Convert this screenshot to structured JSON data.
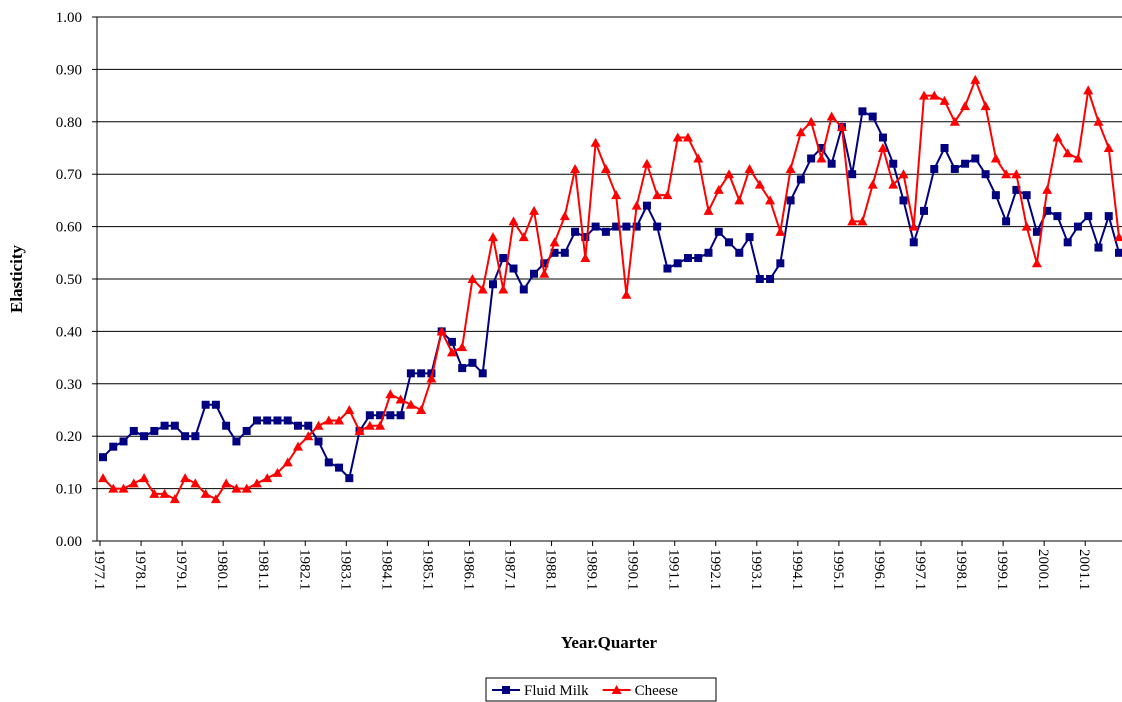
{
  "chart_data": {
    "type": "line",
    "x_label": "Year.Quarter",
    "y_label": "Elasticity",
    "categories": [
      "1977.1",
      null,
      null,
      null,
      "1978.1",
      null,
      null,
      null,
      "1979.1",
      null,
      null,
      null,
      "1980.1",
      null,
      null,
      null,
      "1981.1",
      null,
      null,
      null,
      "1982.1",
      null,
      null,
      null,
      "1983.1",
      null,
      null,
      null,
      "1984.1",
      null,
      null,
      null,
      "1985.1",
      null,
      null,
      null,
      "1986.1",
      null,
      null,
      null,
      "1987.1",
      null,
      null,
      null,
      "1988.1",
      null,
      null,
      null,
      "1989.1",
      null,
      null,
      null,
      "1990.1",
      null,
      null,
      null,
      "1991.1",
      null,
      null,
      null,
      "1992.1",
      null,
      null,
      null,
      "1993.1",
      null,
      null,
      null,
      "1994.1",
      null,
      null,
      null,
      "1995.1",
      null,
      null,
      null,
      "1996.1",
      null,
      null,
      null,
      "1997.1",
      null,
      null,
      null,
      "1998.1",
      null,
      null,
      null,
      "1999.1",
      null,
      null,
      null,
      "2000.1",
      null,
      null,
      null,
      "2001.1",
      null,
      null,
      null
    ],
    "series": [
      {
        "name": "Fluid Milk",
        "color": "#000080",
        "marker": "square",
        "values": [
          0.16,
          0.18,
          0.19,
          0.21,
          0.2,
          0.21,
          0.22,
          0.22,
          0.2,
          0.2,
          0.26,
          0.26,
          0.22,
          0.19,
          0.21,
          0.23,
          0.23,
          0.23,
          0.23,
          0.22,
          0.22,
          0.19,
          0.15,
          0.14,
          0.12,
          0.21,
          0.24,
          0.24,
          0.24,
          0.24,
          0.32,
          0.32,
          0.32,
          0.4,
          0.38,
          0.33,
          0.34,
          0.32,
          0.49,
          0.54,
          0.52,
          0.48,
          0.51,
          0.53,
          0.55,
          0.55,
          0.59,
          0.58,
          0.6,
          0.59,
          0.6,
          0.6,
          0.6,
          0.64,
          0.6,
          0.52,
          0.53,
          0.54,
          0.54,
          0.55,
          0.59,
          0.57,
          0.55,
          0.58,
          0.5,
          0.5,
          0.53,
          0.65,
          0.69,
          0.73,
          0.75,
          0.72,
          0.79,
          0.7,
          0.82,
          0.81,
          0.77,
          0.72,
          0.65,
          0.57,
          0.63,
          0.71,
          0.75,
          0.71,
          0.72,
          0.73,
          0.7,
          0.66,
          0.61,
          0.67,
          0.66,
          0.59,
          0.63,
          0.62,
          0.57,
          0.6,
          0.62,
          0.56,
          0.62,
          0.55
        ]
      },
      {
        "name": "Cheese",
        "color": "#ff0000",
        "marker": "triangle",
        "values": [
          0.12,
          0.1,
          0.1,
          0.11,
          0.12,
          0.09,
          0.09,
          0.08,
          0.12,
          0.11,
          0.09,
          0.08,
          0.11,
          0.1,
          0.1,
          0.11,
          0.12,
          0.13,
          0.15,
          0.18,
          0.2,
          0.22,
          0.23,
          0.23,
          0.25,
          0.21,
          0.22,
          0.22,
          0.28,
          0.27,
          0.26,
          0.25,
          0.31,
          0.4,
          0.36,
          0.37,
          0.5,
          0.48,
          0.58,
          0.48,
          0.61,
          0.58,
          0.63,
          0.51,
          0.57,
          0.62,
          0.71,
          0.54,
          0.76,
          0.71,
          0.66,
          0.47,
          0.64,
          0.72,
          0.66,
          0.66,
          0.77,
          0.77,
          0.73,
          0.63,
          0.67,
          0.7,
          0.65,
          0.71,
          0.68,
          0.65,
          0.59,
          0.71,
          0.78,
          0.8,
          0.73,
          0.81,
          0.79,
          0.61,
          0.61,
          0.68,
          0.75,
          0.68,
          0.7,
          0.6,
          0.85,
          0.85,
          0.84,
          0.8,
          0.83,
          0.88,
          0.83,
          0.73,
          0.7,
          0.7,
          0.6,
          0.53,
          0.67,
          0.77,
          0.74,
          0.73,
          0.86,
          0.8,
          0.75,
          0.58
        ]
      }
    ],
    "ylim": [
      0,
      1
    ],
    "yticks": [
      {
        "value": 0,
        "label": "0.00"
      },
      {
        "value": 0.1,
        "label": "0.10"
      },
      {
        "value": 0.2,
        "label": "0.20"
      },
      {
        "value": 0.3,
        "label": "0.30"
      },
      {
        "value": 0.4,
        "label": "0.40"
      },
      {
        "value": 0.5,
        "label": "0.50"
      },
      {
        "value": 0.6,
        "label": "0.60"
      },
      {
        "value": 0.7,
        "label": "0.70"
      },
      {
        "value": 0.8,
        "label": "0.80"
      },
      {
        "value": 0.9,
        "label": "0.90"
      },
      {
        "value": 1,
        "label": "1.00"
      }
    ],
    "grid": true,
    "legend": "bottom"
  }
}
